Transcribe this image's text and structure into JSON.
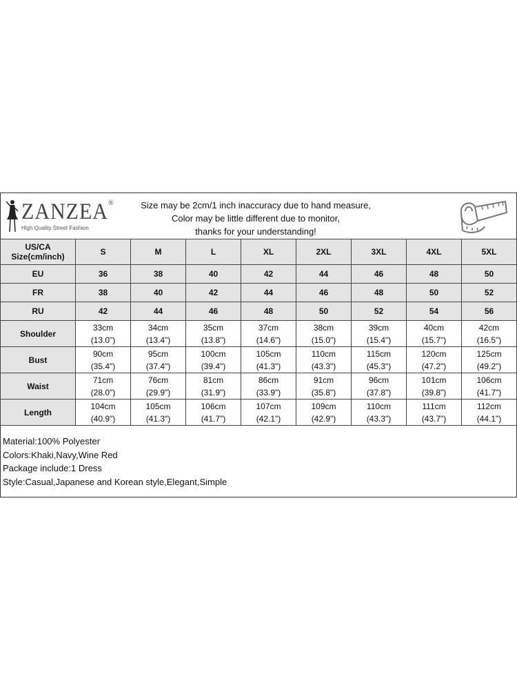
{
  "brand": {
    "name": "ZANZEA",
    "registered": "®",
    "tagline": "High Quality Street Fashion"
  },
  "notice": [
    "Size may be 2cm/1 inch inaccuracy due to hand measure,",
    "Color may be little different due to monitor,",
    "thanks for your understanding!"
  ],
  "icons": {
    "logo": "fashion-figure-logo",
    "tape": "measuring-tape-icon"
  },
  "table": {
    "header_label": [
      "US/CA",
      "Size(cm/inch)"
    ],
    "sizes": [
      "S",
      "M",
      "L",
      "XL",
      "2XL",
      "3XL",
      "4XL",
      "5XL"
    ],
    "size_rows": [
      {
        "label": "EU",
        "values": [
          "36",
          "38",
          "40",
          "42",
          "44",
          "46",
          "48",
          "50"
        ]
      },
      {
        "label": "FR",
        "values": [
          "38",
          "40",
          "42",
          "44",
          "46",
          "48",
          "50",
          "52"
        ]
      },
      {
        "label": "RU",
        "values": [
          "42",
          "44",
          "46",
          "48",
          "50",
          "52",
          "54",
          "56"
        ]
      }
    ],
    "measure_rows": [
      {
        "label": "Shoulder",
        "cm": [
          "33cm",
          "34cm",
          "35cm",
          "37cm",
          "38cm",
          "39cm",
          "40cm",
          "42cm"
        ],
        "inch": [
          "(13.0\")",
          "(13.4\")",
          "(13.8\")",
          "(14.6\")",
          "(15.0\")",
          "(15.4\")",
          "(15.7\")",
          "(16.5\")"
        ]
      },
      {
        "label": "Bust",
        "cm": [
          "90cm",
          "95cm",
          "100cm",
          "105cm",
          "110cm",
          "115cm",
          "120cm",
          "125cm"
        ],
        "inch": [
          "(35.4\")",
          "(37.4\")",
          "(39.4\")",
          "(41.3\")",
          "(43.3\")",
          "(45.3\")",
          "(47.2\")",
          "(49.2\")"
        ]
      },
      {
        "label": "Waist",
        "cm": [
          "71cm",
          "76cm",
          "81cm",
          "86cm",
          "91cm",
          "96cm",
          "101cm",
          "106cm"
        ],
        "inch": [
          "(28.0\")",
          "(29.9\")",
          "(31.9\")",
          "(33.9\")",
          "(35.8\")",
          "(37.8\")",
          "(39.8\")",
          "(41.7\")"
        ]
      },
      {
        "label": "Length",
        "cm": [
          "104cm",
          "105cm",
          "106cm",
          "107cm",
          "109cm",
          "110cm",
          "111cm",
          "112cm"
        ],
        "inch": [
          "(40.9\")",
          "(41.3\")",
          "(41.7\")",
          "(42.1\")",
          "(42.9\")",
          "(43.3\")",
          "(43.7\")",
          "(44.1\")"
        ]
      }
    ]
  },
  "info": [
    "Material:100% Polyester",
    "Colors:Khaki,Navy,Wine Red",
    "Package include:1 Dress",
    "Style:Casual,Japanese and Korean style,Elegant,Simple"
  ]
}
